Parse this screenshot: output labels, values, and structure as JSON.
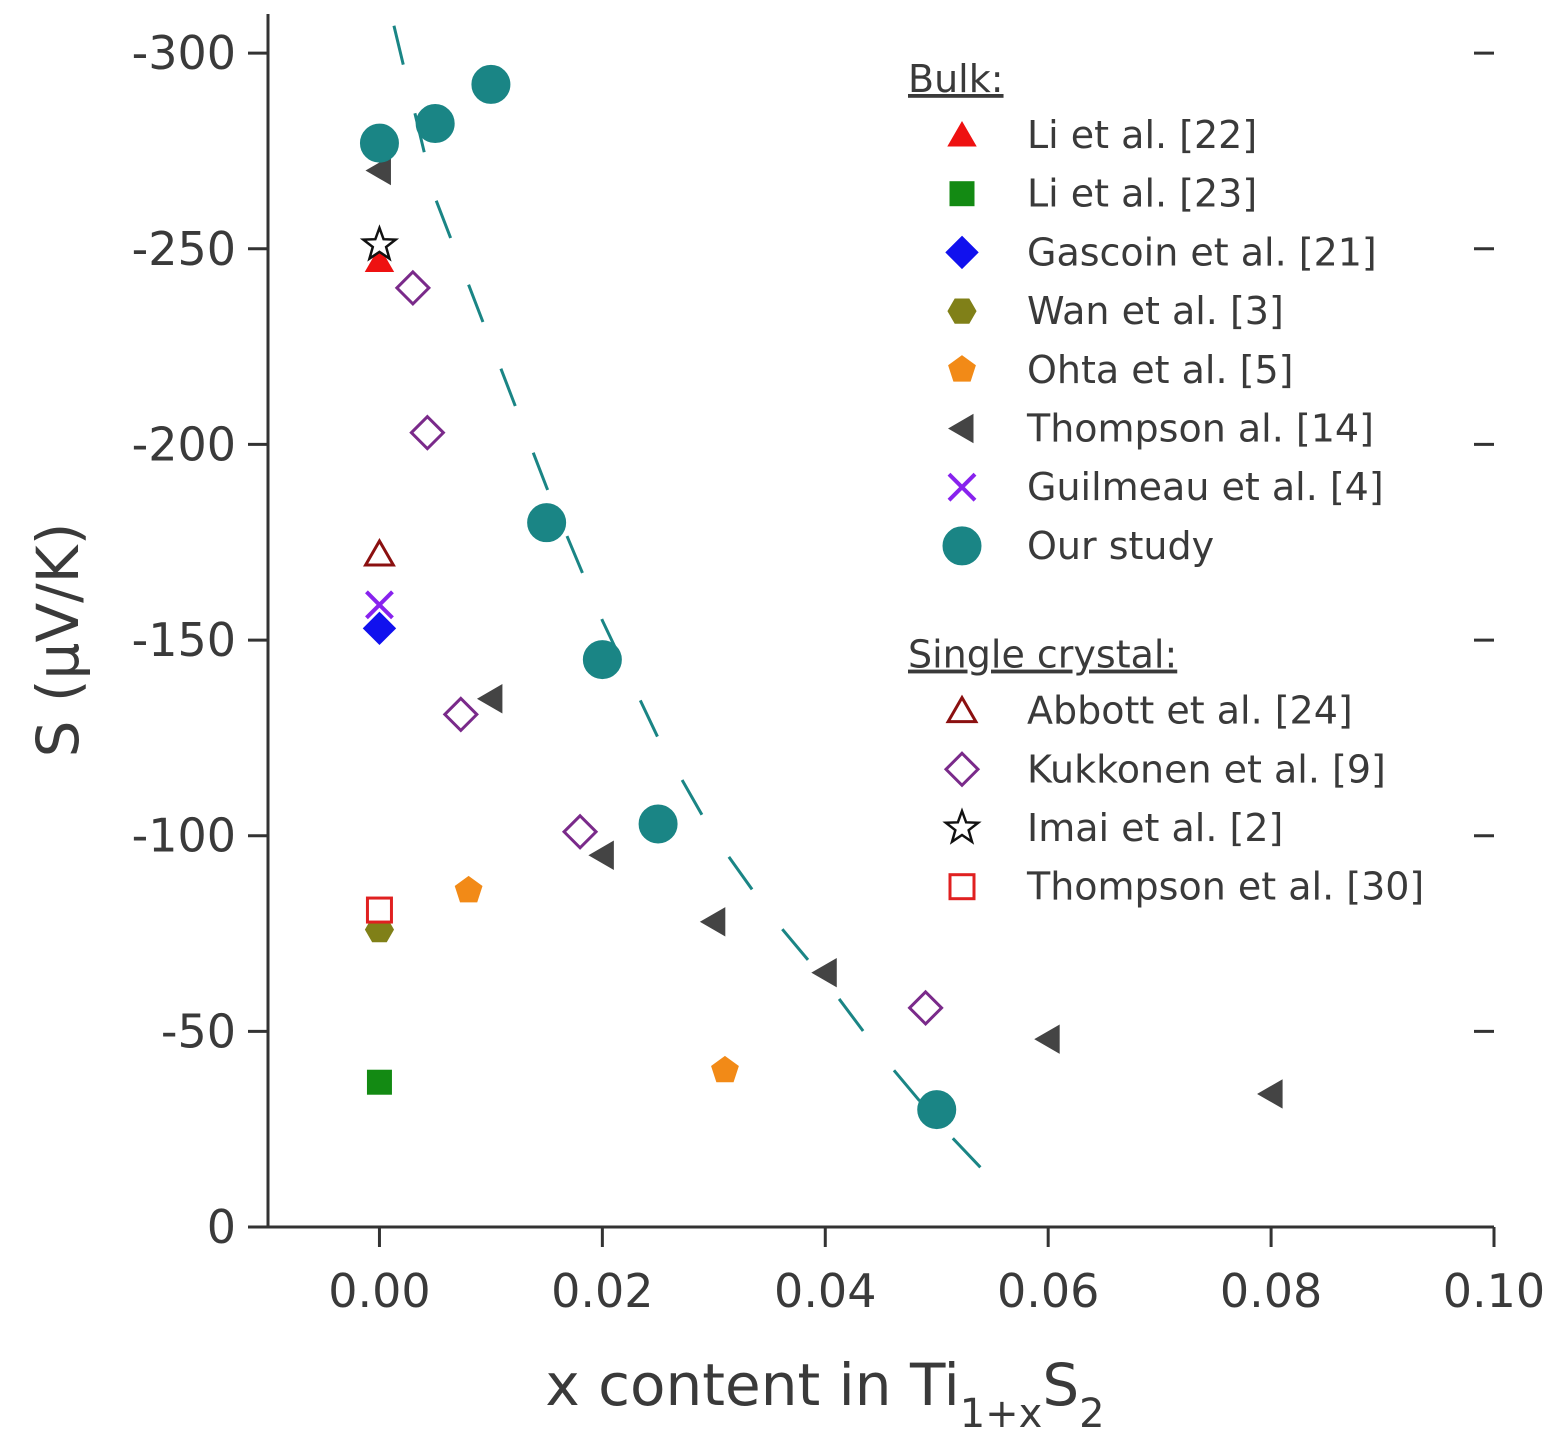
{
  "chart_data": {
    "type": "scatter",
    "x_label": [
      {
        "text": "x content in Ti"
      },
      {
        "text": "1+x",
        "sub": true
      },
      {
        "text": "S"
      },
      {
        "text": "2",
        "sub": true
      }
    ],
    "y_label": "S (μV/K)",
    "xlim": [
      -0.01,
      0.1
    ],
    "ylim": [
      0,
      -310
    ],
    "xticks": [
      {
        "value": 0,
        "label": "0.00"
      },
      {
        "value": 0.02,
        "label": "0.02"
      },
      {
        "value": 0.04,
        "label": "0.04"
      },
      {
        "value": 0.06,
        "label": "0.06"
      },
      {
        "value": 0.08,
        "label": "0.08"
      },
      {
        "value": 0.1,
        "label": "0.10"
      }
    ],
    "yticks": [
      0,
      -50,
      -100,
      -150,
      -200,
      -250,
      -300
    ],
    "groups": [
      {
        "title": "Bulk:",
        "series": [
          {
            "name": "Li et al. [22]",
            "color": "#ee1111",
            "marker": "triangle-up",
            "filled": true,
            "x": [
              0
            ],
            "y": [
              -247
            ]
          },
          {
            "name": "Li et al. [23]",
            "color": "#138a13",
            "marker": "square",
            "filled": true,
            "x": [
              0
            ],
            "y": [
              -37
            ]
          },
          {
            "name": "Gascoin et al. [21]",
            "color": "#1111ee",
            "marker": "diamond",
            "filled": true,
            "x": [
              0
            ],
            "y": [
              -153
            ]
          },
          {
            "name": "Wan et al. [3]",
            "color": "#808018",
            "marker": "hexagon",
            "filled": true,
            "x": [
              0
            ],
            "y": [
              -76
            ]
          },
          {
            "name": "Ohta et al. [5]",
            "color": "#f28a17",
            "marker": "pentagon",
            "filled": true,
            "x": [
              0.008,
              0.031
            ],
            "y": [
              -86,
              -40
            ]
          },
          {
            "name": "Thompson al. [14]",
            "color": "#444444",
            "marker": "triangle-left",
            "filled": true,
            "x": [
              0,
              0.01,
              0.02,
              0.03,
              0.04,
              0.06,
              0.08
            ],
            "y": [
              -270,
              -135,
              -95,
              -78,
              -65,
              -48,
              -34
            ]
          },
          {
            "name": "Guilmeau et al. [4]",
            "color": "#8822ee",
            "marker": "x",
            "filled": true,
            "x": [
              0
            ],
            "y": [
              -159
            ]
          },
          {
            "name": "Our study",
            "color": "#1a8585",
            "marker": "circle",
            "filled": true,
            "x": [
              0,
              0.005,
              0.01,
              0.015,
              0.02,
              0.025,
              0.05
            ],
            "y": [
              -277,
              -282,
              -292,
              -180,
              -145,
              -103,
              -30
            ]
          }
        ]
      },
      {
        "title": "Single crystal:",
        "series": [
          {
            "name": "Abbott et al. [24]",
            "color": "#8b1010",
            "marker": "triangle-up",
            "filled": false,
            "x": [
              0
            ],
            "y": [
              -172
            ]
          },
          {
            "name": "Kukkonen et al. [9]",
            "color": "#7a2a8a",
            "marker": "diamond",
            "filled": false,
            "x": [
              0.003,
              0.0043,
              0.0073,
              0.018,
              0.049
            ],
            "y": [
              -240,
              -203,
              -131,
              -101,
              -56
            ]
          },
          {
            "name": "Imai et al. [2]",
            "color": "#111111",
            "marker": "star",
            "filled": false,
            "x": [
              0
            ],
            "y": [
              -251
            ]
          },
          {
            "name": "Thompson et al. [30]",
            "color": "#e02020",
            "marker": "square",
            "filled": false,
            "x": [
              0
            ],
            "y": [
              -81
            ]
          }
        ]
      }
    ],
    "lines": [
      {
        "color": "#1a8585",
        "style": "dashed",
        "x": [
          0.0013,
          0.005,
          0.01,
          0.015,
          0.02,
          0.025,
          0.03,
          0.035,
          0.04,
          0.045,
          0.05,
          0.055
        ],
        "y": [
          -307,
          -263,
          -226,
          -189,
          -155,
          -125,
          -100,
          -80,
          -63,
          -44,
          -27,
          -12
        ]
      }
    ]
  }
}
